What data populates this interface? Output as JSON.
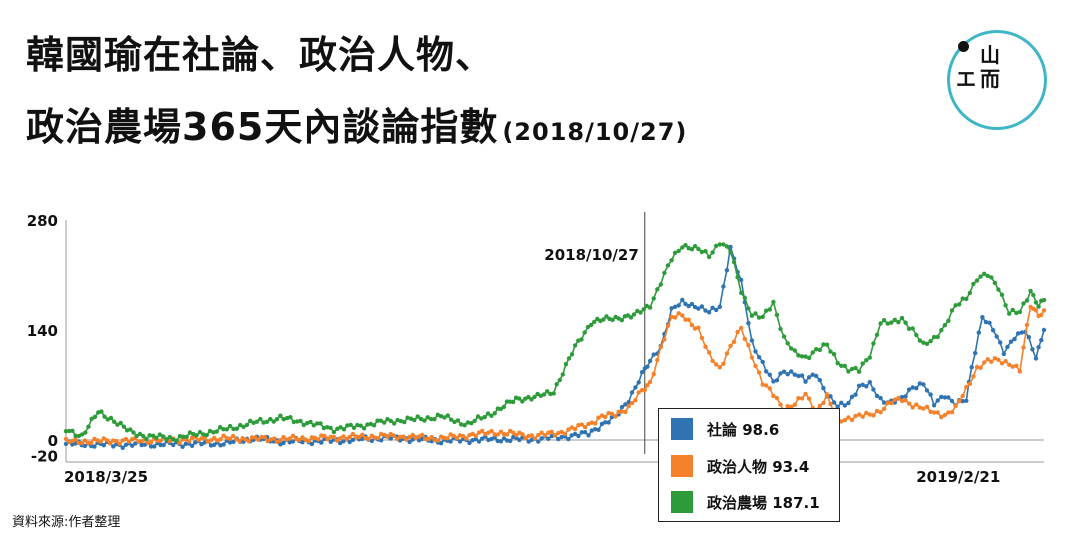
{
  "title": {
    "line1": "韓國瑜在社論、政治人物、",
    "line2": "政治農場365天內談論指數",
    "date": "(2018/10/27)"
  },
  "logo": {
    "glyphs": [
      "山",
      "エ",
      "而"
    ]
  },
  "source": "資料來源:作者整理",
  "chart_data": {
    "type": "line",
    "y_ticks": [
      "280",
      "140",
      "0",
      "-20"
    ],
    "x_tick_labels": [
      "2018/3/25",
      "2019/2/21"
    ],
    "annotation": "2018/10/27",
    "ylim": [
      -20,
      280
    ],
    "x_unit": "days since 2018/3/25",
    "xlim": [
      0,
      365
    ],
    "annotation_day": 216,
    "x_tick_days": [
      0,
      333
    ],
    "grid": false,
    "legend_position": "bottom-right",
    "series": [
      {
        "name": "社論",
        "value_label": "98.6",
        "color": "#2f73b0",
        "points": [
          [
            0,
            -5
          ],
          [
            20,
            -6
          ],
          [
            40,
            -5
          ],
          [
            60,
            -4
          ],
          [
            70,
            2
          ],
          [
            80,
            -2
          ],
          [
            100,
            -1
          ],
          [
            120,
            3
          ],
          [
            140,
            -1
          ],
          [
            160,
            1
          ],
          [
            175,
            1
          ],
          [
            185,
            4
          ],
          [
            195,
            8
          ],
          [
            200,
            20
          ],
          [
            205,
            28
          ],
          [
            210,
            52
          ],
          [
            215,
            83
          ],
          [
            218,
            100
          ],
          [
            222,
            120
          ],
          [
            226,
            165
          ],
          [
            230,
            175
          ],
          [
            236,
            170
          ],
          [
            240,
            162
          ],
          [
            244,
            170
          ],
          [
            248,
            245
          ],
          [
            252,
            200
          ],
          [
            256,
            125
          ],
          [
            260,
            98
          ],
          [
            264,
            72
          ],
          [
            268,
            88
          ],
          [
            272,
            85
          ],
          [
            276,
            75
          ],
          [
            280,
            85
          ],
          [
            284,
            58
          ],
          [
            288,
            42
          ],
          [
            292,
            48
          ],
          [
            296,
            68
          ],
          [
            300,
            70
          ],
          [
            304,
            52
          ],
          [
            308,
            48
          ],
          [
            312,
            52
          ],
          [
            316,
            68
          ],
          [
            320,
            72
          ],
          [
            324,
            45
          ],
          [
            328,
            58
          ],
          [
            332,
            46
          ],
          [
            336,
            50
          ],
          [
            338,
            92
          ],
          [
            342,
            158
          ],
          [
            346,
            140
          ],
          [
            350,
            112
          ],
          [
            354,
            132
          ],
          [
            358,
            138
          ],
          [
            362,
            105
          ],
          [
            365,
            140
          ]
        ]
      },
      {
        "name": "政治人物",
        "value_label": "93.4",
        "color": "#f5822a",
        "points": [
          [
            0,
            -2
          ],
          [
            20,
            -1
          ],
          [
            40,
            0
          ],
          [
            60,
            2
          ],
          [
            80,
            1
          ],
          [
            100,
            3
          ],
          [
            120,
            5
          ],
          [
            140,
            2
          ],
          [
            160,
            10
          ],
          [
            175,
            5
          ],
          [
            185,
            10
          ],
          [
            195,
            20
          ],
          [
            200,
            30
          ],
          [
            205,
            32
          ],
          [
            210,
            42
          ],
          [
            215,
            62
          ],
          [
            218,
            72
          ],
          [
            222,
            118
          ],
          [
            226,
            155
          ],
          [
            230,
            160
          ],
          [
            236,
            140
          ],
          [
            240,
            108
          ],
          [
            244,
            92
          ],
          [
            248,
            118
          ],
          [
            252,
            142
          ],
          [
            256,
            108
          ],
          [
            260,
            72
          ],
          [
            264,
            58
          ],
          [
            268,
            40
          ],
          [
            272,
            45
          ],
          [
            276,
            58
          ],
          [
            280,
            38
          ],
          [
            284,
            55
          ],
          [
            288,
            25
          ],
          [
            292,
            28
          ],
          [
            296,
            30
          ],
          [
            300,
            32
          ],
          [
            304,
            38
          ],
          [
            308,
            48
          ],
          [
            312,
            52
          ],
          [
            316,
            45
          ],
          [
            320,
            40
          ],
          [
            324,
            35
          ],
          [
            328,
            32
          ],
          [
            332,
            40
          ],
          [
            336,
            65
          ],
          [
            340,
            92
          ],
          [
            344,
            100
          ],
          [
            348,
            102
          ],
          [
            352,
            98
          ],
          [
            356,
            88
          ],
          [
            360,
            172
          ],
          [
            363,
            160
          ],
          [
            365,
            165
          ]
        ]
      },
      {
        "name": "政治農場",
        "value_label": "187.1",
        "color": "#2e9b3a",
        "points": [
          [
            0,
            12
          ],
          [
            6,
            6
          ],
          [
            12,
            35
          ],
          [
            18,
            25
          ],
          [
            24,
            10
          ],
          [
            30,
            5
          ],
          [
            40,
            2
          ],
          [
            50,
            8
          ],
          [
            60,
            14
          ],
          [
            70,
            22
          ],
          [
            80,
            28
          ],
          [
            90,
            22
          ],
          [
            100,
            14
          ],
          [
            110,
            18
          ],
          [
            120,
            24
          ],
          [
            130,
            26
          ],
          [
            140,
            30
          ],
          [
            150,
            20
          ],
          [
            160,
            36
          ],
          [
            168,
            52
          ],
          [
            176,
            55
          ],
          [
            182,
            62
          ],
          [
            190,
            118
          ],
          [
            196,
            150
          ],
          [
            204,
            155
          ],
          [
            212,
            158
          ],
          [
            218,
            172
          ],
          [
            222,
            200
          ],
          [
            226,
            230
          ],
          [
            230,
            248
          ],
          [
            236,
            242
          ],
          [
            240,
            235
          ],
          [
            244,
            252
          ],
          [
            248,
            240
          ],
          [
            252,
            190
          ],
          [
            256,
            160
          ],
          [
            260,
            155
          ],
          [
            264,
            175
          ],
          [
            268,
            130
          ],
          [
            272,
            110
          ],
          [
            276,
            105
          ],
          [
            280,
            115
          ],
          [
            284,
            120
          ],
          [
            288,
            100
          ],
          [
            292,
            90
          ],
          [
            296,
            88
          ],
          [
            300,
            108
          ],
          [
            304,
            150
          ],
          [
            308,
            148
          ],
          [
            312,
            155
          ],
          [
            316,
            140
          ],
          [
            320,
            120
          ],
          [
            324,
            130
          ],
          [
            328,
            145
          ],
          [
            332,
            170
          ],
          [
            336,
            182
          ],
          [
            340,
            205
          ],
          [
            344,
            210
          ],
          [
            348,
            195
          ],
          [
            352,
            162
          ],
          [
            356,
            162
          ],
          [
            360,
            190
          ],
          [
            363,
            172
          ],
          [
            365,
            178
          ]
        ]
      }
    ]
  }
}
